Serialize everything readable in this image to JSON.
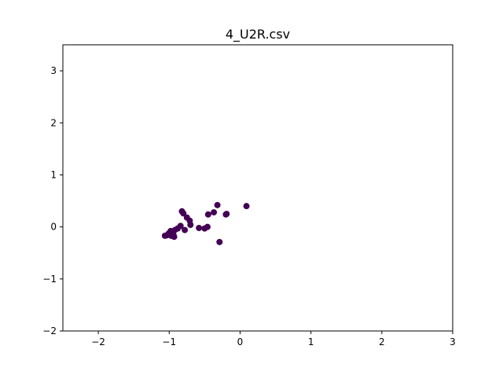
{
  "chart_data": {
    "type": "scatter",
    "title": "4_U2R.csv",
    "xlabel": "",
    "ylabel": "",
    "xlim": [
      -2.5,
      3
    ],
    "ylim": [
      -2,
      3.5
    ],
    "xticks": [
      "−2",
      "−1",
      "0",
      "1",
      "2",
      "3"
    ],
    "xtick_values": [
      -2,
      -1,
      0,
      1,
      2,
      3
    ],
    "yticks": [
      "−2",
      "−1",
      "0",
      "1",
      "2",
      "3"
    ],
    "ytick_values": [
      -2,
      -1,
      0,
      1,
      2,
      3
    ],
    "grid": false,
    "marker_color": "#440154",
    "series": [
      {
        "points": [
          [
            0.09,
            0.4
          ],
          [
            -0.32,
            0.42
          ],
          [
            -0.19,
            0.25
          ],
          [
            -0.2,
            0.24
          ],
          [
            -0.37,
            0.28
          ],
          [
            -0.45,
            0.24
          ],
          [
            -0.82,
            0.3
          ],
          [
            -0.8,
            0.26
          ],
          [
            -0.75,
            0.18
          ],
          [
            -0.71,
            0.12
          ],
          [
            -0.7,
            0.04
          ],
          [
            -0.84,
            0.02
          ],
          [
            -0.78,
            -0.06
          ],
          [
            -0.88,
            -0.03
          ],
          [
            -0.58,
            -0.02
          ],
          [
            -0.5,
            -0.03
          ],
          [
            -0.46,
            0.0
          ],
          [
            -0.92,
            -0.06
          ],
          [
            -0.95,
            -0.1
          ],
          [
            -0.98,
            -0.08
          ],
          [
            -1.01,
            -0.13
          ],
          [
            -0.94,
            -0.15
          ],
          [
            -0.97,
            -0.17
          ],
          [
            -1.03,
            -0.16
          ],
          [
            -1.06,
            -0.17
          ],
          [
            -0.93,
            -0.19
          ],
          [
            -0.29,
            -0.29
          ],
          [
            -0.99,
            -0.14
          ]
        ]
      }
    ]
  }
}
